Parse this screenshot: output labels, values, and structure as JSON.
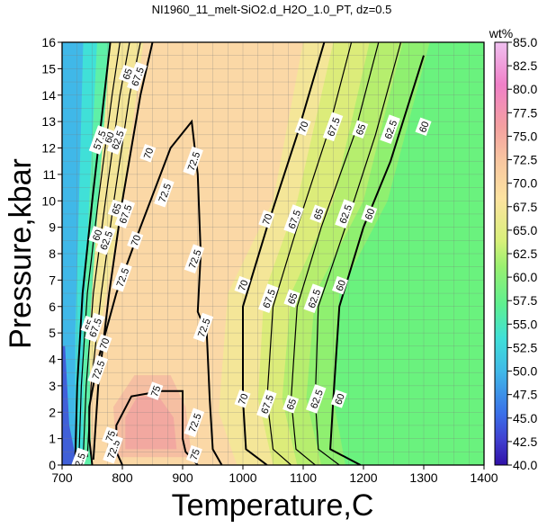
{
  "chart_data": {
    "type": "heatmap",
    "title": "NI1960_11_melt-SiO2.d_H2O_1.0_PT, dz=0.5",
    "xlabel": "Temperature,C",
    "ylabel": "Pressure,kbar",
    "xlim": [
      700,
      1400
    ],
    "ylim": [
      0,
      16
    ],
    "x_ticks": [
      700,
      800,
      900,
      1000,
      1100,
      1200,
      1300,
      1400
    ],
    "y_ticks": [
      0,
      1,
      2,
      3,
      4,
      5,
      6,
      7,
      8,
      9,
      10,
      11,
      12,
      13,
      14,
      15,
      16
    ],
    "grid": true,
    "colorbar": {
      "label": "wt%",
      "min": 40.0,
      "max": 85.0,
      "ticks": [
        "40.0",
        "42.5",
        "45.0",
        "47.5",
        "50.0",
        "52.5",
        "55.0",
        "57.5",
        "60.0",
        "62.5",
        "65.0",
        "67.5",
        "70.0",
        "72.5",
        "75.0",
        "77.5",
        "80.0",
        "82.5",
        "85.0"
      ]
    },
    "contour_labels": [
      {
        "text": "60",
        "T": 1300,
        "P": 12.8
      },
      {
        "text": "62.5",
        "T": 1245,
        "P": 12.7
      },
      {
        "text": "65",
        "T": 1195,
        "P": 12.7
      },
      {
        "text": "67.5",
        "T": 1150,
        "P": 12.8
      },
      {
        "text": "70",
        "T": 1100,
        "P": 12.8
      },
      {
        "text": "72.5",
        "T": 918,
        "P": 11.5
      },
      {
        "text": "72.5",
        "T": 870,
        "P": 10.3
      },
      {
        "text": "72.5",
        "T": 920,
        "P": 7.8
      },
      {
        "text": "72.5",
        "T": 800,
        "P": 7.1
      },
      {
        "text": "72.5",
        "T": 935,
        "P": 5.2
      },
      {
        "text": "72.5",
        "T": 920,
        "P": 1.6
      },
      {
        "text": "72.5",
        "T": 760,
        "P": 3.6
      },
      {
        "text": "72.5",
        "T": 785,
        "P": 0.6
      },
      {
        "text": "75",
        "T": 855,
        "P": 2.8
      },
      {
        "text": "75",
        "T": 780,
        "P": 1.1
      },
      {
        "text": "75",
        "T": 920,
        "P": 0.4
      },
      {
        "text": "70",
        "T": 1040,
        "P": 9.3
      },
      {
        "text": "67.5",
        "T": 1085,
        "P": 9.3
      },
      {
        "text": "65",
        "T": 1125,
        "P": 9.5
      },
      {
        "text": "62.5",
        "T": 1170,
        "P": 9.5
      },
      {
        "text": "60",
        "T": 1210,
        "P": 9.5
      },
      {
        "text": "70",
        "T": 1000,
        "P": 6.8
      },
      {
        "text": "67.5",
        "T": 1043,
        "P": 6.3
      },
      {
        "text": "65",
        "T": 1082,
        "P": 6.3
      },
      {
        "text": "62.5",
        "T": 1118,
        "P": 6.3
      },
      {
        "text": "60",
        "T": 1162,
        "P": 6.8
      },
      {
        "text": "70",
        "T": 1000,
        "P": 2.5
      },
      {
        "text": "67.5",
        "T": 1040,
        "P": 2.3
      },
      {
        "text": "65",
        "T": 1080,
        "P": 2.3
      },
      {
        "text": "62.5",
        "T": 1122,
        "P": 2.5
      },
      {
        "text": "60",
        "T": 1160,
        "P": 2.5
      },
      {
        "text": "70",
        "T": 843,
        "P": 11.8
      },
      {
        "text": "67.5",
        "T": 825,
        "P": 14.7
      },
      {
        "text": "65",
        "T": 808,
        "P": 14.8
      },
      {
        "text": "62.5",
        "T": 792,
        "P": 12.3
      },
      {
        "text": "60",
        "T": 778,
        "P": 12.4
      },
      {
        "text": "57.5",
        "T": 762,
        "P": 12.3
      },
      {
        "text": "65",
        "T": 790,
        "P": 9.7
      },
      {
        "text": "67.5",
        "T": 805,
        "P": 9.5
      },
      {
        "text": "70",
        "T": 822,
        "P": 8.5
      },
      {
        "text": "62.5",
        "T": 773,
        "P": 8.5
      },
      {
        "text": "60",
        "T": 758,
        "P": 8.7
      },
      {
        "text": "65",
        "T": 745,
        "P": 5.3
      },
      {
        "text": "67.5",
        "T": 755,
        "P": 5.2
      },
      {
        "text": "70",
        "T": 770,
        "P": 4.6
      },
      {
        "text": "32.5",
        "T": 728,
        "P": 0.1
      }
    ]
  }
}
